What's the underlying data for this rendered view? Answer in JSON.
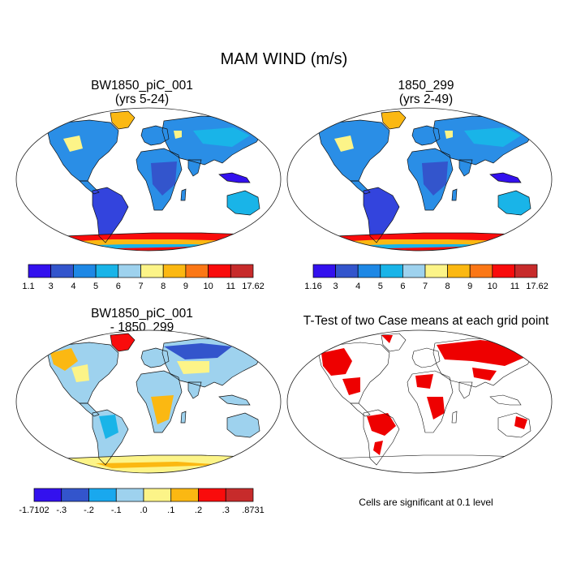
{
  "figure": {
    "title": "MAM WIND (m/s)"
  },
  "panels": [
    {
      "title1": "BW1850_piC_001",
      "title2": "(yrs 5-24)"
    },
    {
      "title1": "1850_299",
      "title2": "(yrs 2-49)"
    },
    {
      "title1": "BW1850_piC_001",
      "title2": "- 1850_299"
    },
    {
      "title1": "T-Test of two Case means at each grid point",
      "title2": ""
    }
  ],
  "colorbars": {
    "wind_a": {
      "colors": [
        "#3311ee",
        "#3355cc",
        "#1e88e5",
        "#19b4e8",
        "#9ed2ee",
        "#fcf488",
        "#fbb812",
        "#fb7716",
        "#f90c0c",
        "#c72b2b"
      ],
      "labels": [
        "1.1",
        "3",
        "4",
        "5",
        "6",
        "7",
        "8",
        "9",
        "10",
        "11",
        "17.62"
      ]
    },
    "wind_b": {
      "colors": [
        "#3311ee",
        "#3355cc",
        "#1e88e5",
        "#19b4e8",
        "#9ed2ee",
        "#fcf488",
        "#fbb812",
        "#fb7716",
        "#f90c0c",
        "#c72b2b"
      ],
      "labels": [
        "1.16",
        "3",
        "4",
        "5",
        "6",
        "7",
        "8",
        "9",
        "10",
        "11",
        "17.62"
      ]
    },
    "diff": {
      "colors": [
        "#3311ee",
        "#3355cc",
        "#19a8ee",
        "#9ed2ee",
        "#fcf488",
        "#fbb812",
        "#f90c0c",
        "#c72b2b"
      ],
      "labels": [
        "-1.7102",
        "-.3",
        "-.2",
        "-.1",
        ".0",
        ".1",
        ".2",
        ".3",
        ".8731"
      ]
    }
  },
  "note": "Cells are significant at 0.1 level",
  "colors": {
    "ocean": "#ffffff",
    "coast": "#111111",
    "land_wind": "#2a8ee6",
    "land_wind_alt": "#19b4e8",
    "antarctic_wind": "#f90c0c",
    "diff_land": "#9ed2ee",
    "ttest_fill": "#ee0000"
  }
}
